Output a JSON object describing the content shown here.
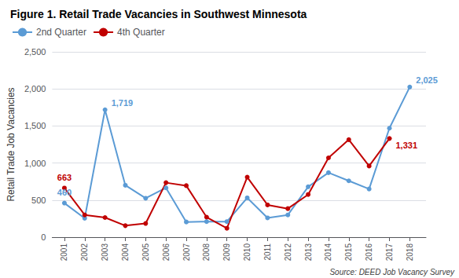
{
  "chart_data": {
    "type": "line",
    "title": "Figure 1. Retail Trade Vacancies in Southwest Minnesota",
    "ylabel": "Retail Trade Job Vacancies",
    "source": "Source: DEED Job Vacancy Survey",
    "x": [
      2001,
      2002,
      2003,
      2004,
      2005,
      2006,
      2007,
      2008,
      2009,
      2010,
      2011,
      2012,
      2013,
      2014,
      2015,
      2016,
      2017,
      2018
    ],
    "series": [
      {
        "name": "2nd Quarter",
        "color": "#5B9BD5",
        "marker": "circle",
        "values": [
          460,
          255,
          1719,
          700,
          525,
          665,
          205,
          210,
          210,
          530,
          260,
          300,
          680,
          870,
          760,
          650,
          1470,
          2025
        ]
      },
      {
        "name": "4th Quarter",
        "color": "#C00000",
        "marker": "circle",
        "values": [
          663,
          300,
          265,
          155,
          185,
          735,
          695,
          270,
          120,
          810,
          435,
          385,
          575,
          1070,
          1315,
          960,
          1331,
          null
        ]
      }
    ],
    "xlim": [
      2000.4,
      2018.8
    ],
    "xticks": [
      2001,
      2002,
      2003,
      2004,
      2005,
      2006,
      2007,
      2008,
      2009,
      2010,
      2011,
      2012,
      2013,
      2014,
      2015,
      2016,
      2017,
      2018
    ],
    "ylim": [
      0,
      2500
    ],
    "yticks": [
      0,
      500,
      {
        "value": 1000,
        "label": "1,000"
      },
      {
        "value": 1500,
        "label": "1,500"
      },
      {
        "value": 2000,
        "label": "2,000"
      },
      {
        "value": 2500,
        "label": "2,500"
      }
    ],
    "grid": "y",
    "legend": "upper left",
    "annotations": [
      {
        "series": "2nd Quarter",
        "x": 2001,
        "y": 460,
        "text": "460"
      },
      {
        "series": "2nd Quarter",
        "x": 2003,
        "y": 1719,
        "text": "1,719"
      },
      {
        "series": "2nd Quarter",
        "x": 2018,
        "y": 2025,
        "text": "2,025"
      },
      {
        "series": "4th Quarter",
        "x": 2001,
        "y": 663,
        "text": "663"
      },
      {
        "series": "4th Quarter",
        "x": 2017,
        "y": 1331,
        "text": "1,331"
      }
    ]
  }
}
